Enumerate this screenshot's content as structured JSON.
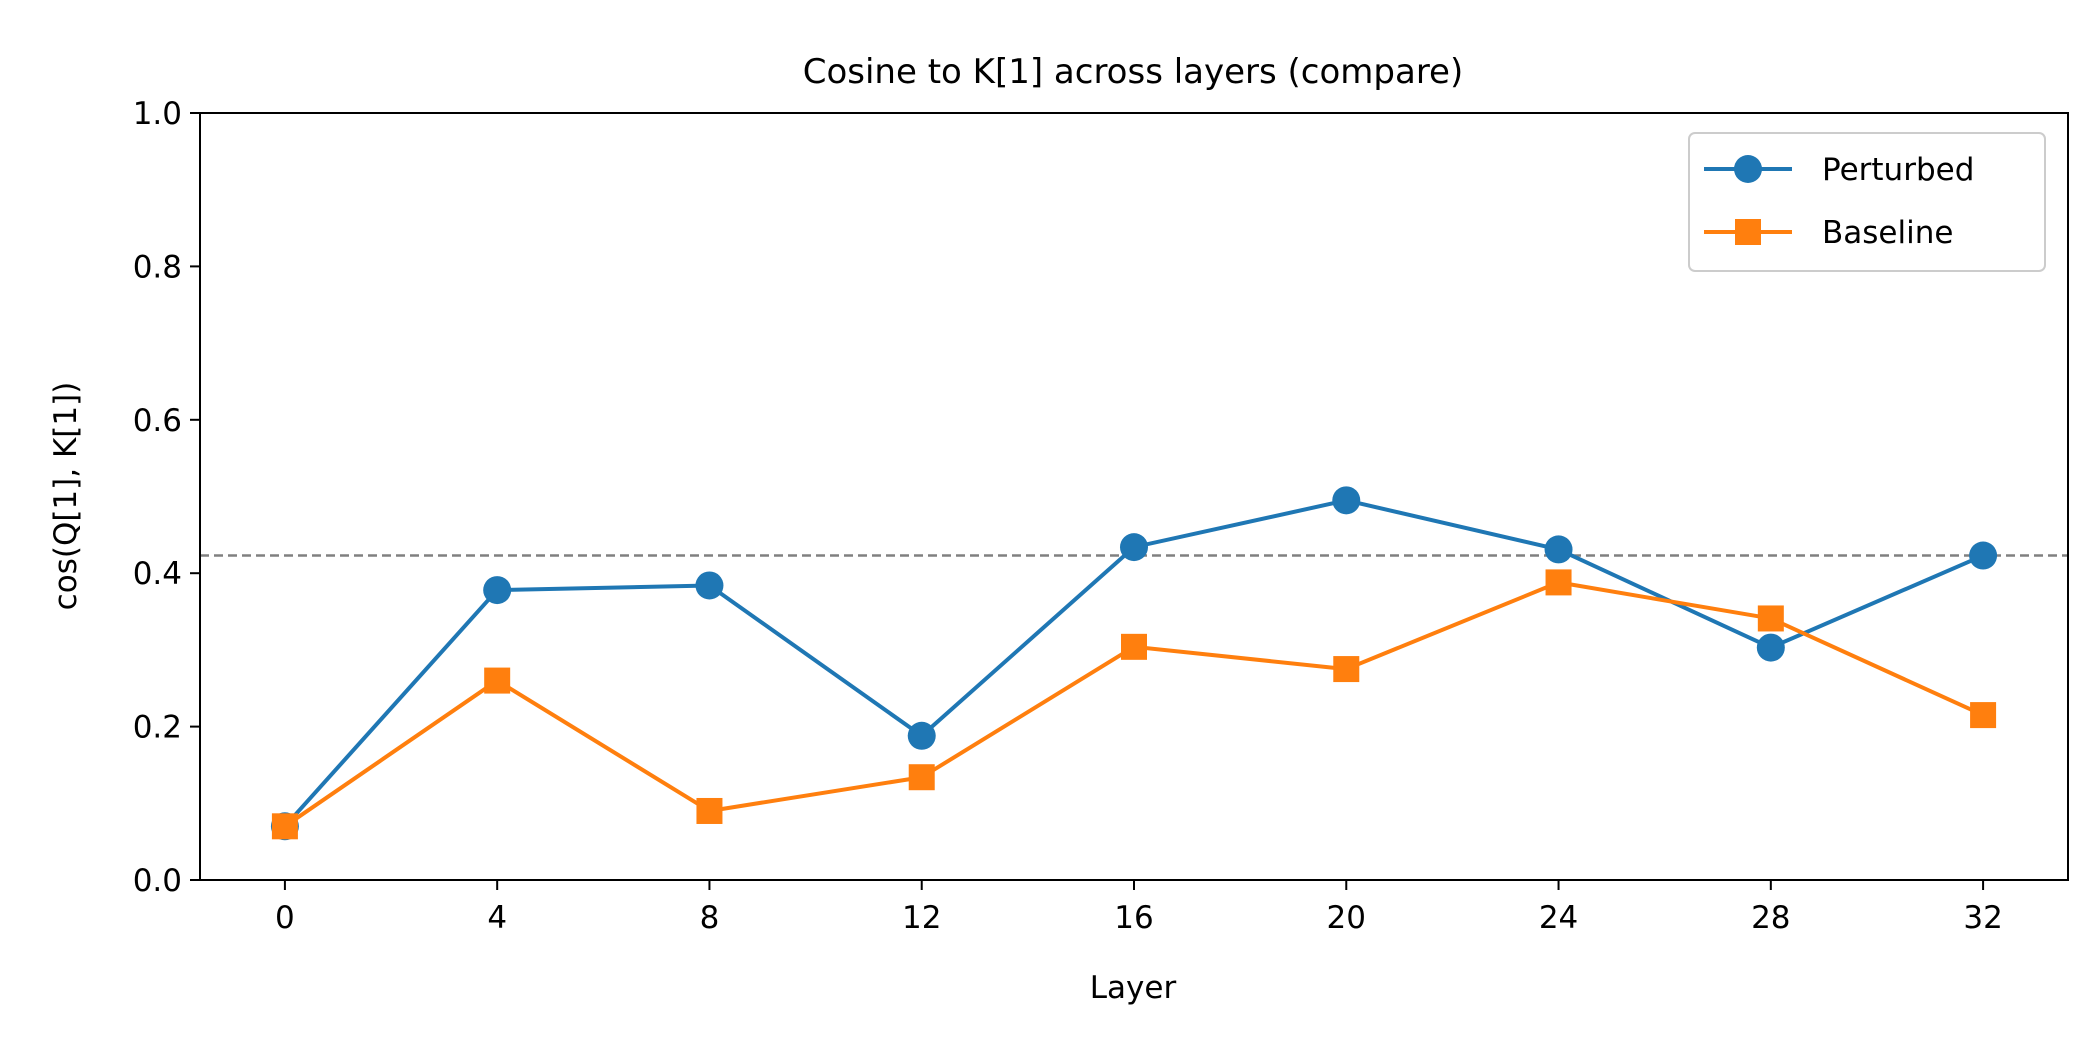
{
  "chart_data": {
    "type": "line",
    "title": "Cosine to K[1] across layers (compare)",
    "xlabel": "Layer",
    "ylabel": "cos(Q[1], K[1])",
    "x": [
      0,
      4,
      8,
      12,
      16,
      20,
      24,
      28,
      32
    ],
    "xlim": [
      -1.6,
      33.6
    ],
    "ylim": [
      0,
      1
    ],
    "xticks": [
      0,
      4,
      8,
      12,
      16,
      20,
      24,
      28,
      32
    ],
    "yticks": [
      0.0,
      0.2,
      0.4,
      0.6,
      0.8,
      1.0
    ],
    "ytick_labels": [
      "0.0",
      "0.2",
      "0.4",
      "0.6",
      "0.8",
      "1.0"
    ],
    "grid": false,
    "legend_position": "top-right",
    "series": [
      {
        "name": "Perturbed",
        "color": "#1f77b4",
        "marker": "circle",
        "values": [
          0.07,
          0.378,
          0.384,
          0.188,
          0.434,
          0.495,
          0.431,
          0.303,
          0.423
        ]
      },
      {
        "name": "Baseline",
        "color": "#ff7f0e",
        "marker": "square",
        "values": [
          0.07,
          0.26,
          0.09,
          0.134,
          0.304,
          0.275,
          0.388,
          0.341,
          0.215
        ]
      }
    ],
    "reference_line": {
      "orientation": "horizontal",
      "y": 0.423,
      "style": "dashed",
      "color": "#808080"
    }
  }
}
